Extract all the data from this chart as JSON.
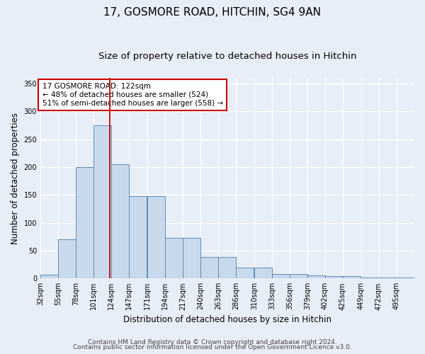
{
  "title1": "17, GOSMORE ROAD, HITCHIN, SG4 9AN",
  "title2": "Size of property relative to detached houses in Hitchin",
  "xlabel": "Distribution of detached houses by size in Hitchin",
  "ylabel": "Number of detached properties",
  "footer1": "Contains HM Land Registry data © Crown copyright and database right 2024.",
  "footer2": "Contains public sector information licensed under the Open Government Licence v3.0.",
  "bar_color": "#c9d9ec",
  "bar_edge_color": "#5b8db8",
  "vline_color": "#cc0000",
  "vline_x": 122,
  "annotation_line1": "17 GOSMORE ROAD: 122sqm",
  "annotation_line2": "← 48% of detached houses are smaller (524)",
  "annotation_line3": "51% of semi-detached houses are larger (558) →",
  "annotation_box_color": "#cc0000",
  "annotation_bg": "#ffffff",
  "categories": [
    "32sqm",
    "55sqm",
    "78sqm",
    "101sqm",
    "124sqm",
    "147sqm",
    "171sqm",
    "194sqm",
    "217sqm",
    "240sqm",
    "263sqm",
    "286sqm",
    "310sqm",
    "333sqm",
    "356sqm",
    "379sqm",
    "402sqm",
    "425sqm",
    "449sqm",
    "472sqm",
    "495sqm"
  ],
  "bin_edges": [
    32,
    55,
    78,
    101,
    124,
    147,
    171,
    194,
    217,
    240,
    263,
    286,
    310,
    333,
    356,
    379,
    402,
    425,
    449,
    472,
    495
  ],
  "bin_width": 23,
  "values": [
    7,
    70,
    200,
    275,
    205,
    148,
    148,
    73,
    73,
    38,
    38,
    20,
    20,
    8,
    8,
    6,
    4,
    4,
    2,
    2,
    2
  ],
  "ylim": [
    0,
    360
  ],
  "yticks": [
    0,
    50,
    100,
    150,
    200,
    250,
    300,
    350
  ],
  "background_color": "#e8eef7",
  "grid_color": "#ffffff",
  "title_fontsize": 11,
  "subtitle_fontsize": 9.5,
  "axis_label_fontsize": 8.5,
  "tick_fontsize": 7,
  "footer_fontsize": 6.5,
  "annotation_fontsize": 7.5
}
